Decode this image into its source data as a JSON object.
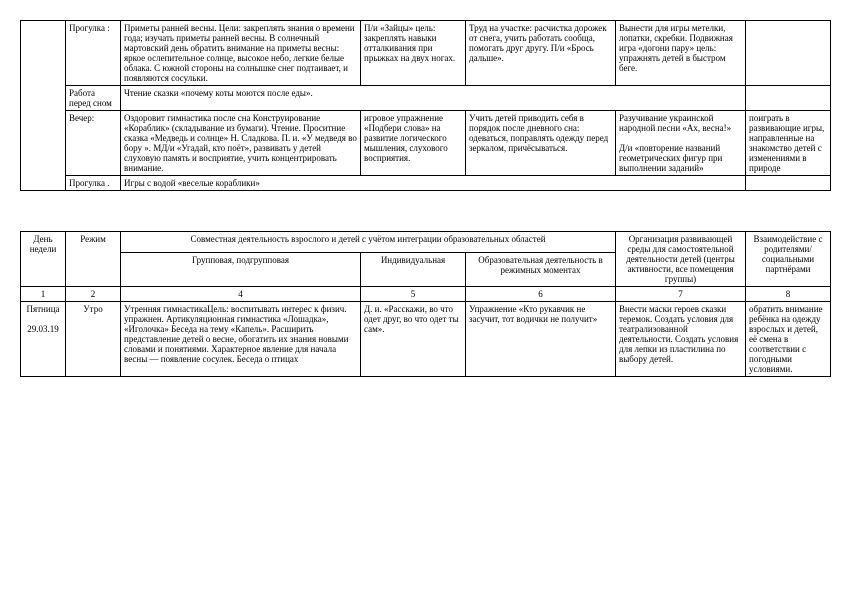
{
  "table1": {
    "rows": [
      {
        "regime": "Прогулка :",
        "c3": "Приметы ранней весны. Цели: закреплять знания о времени года; изучать приметы ранней весны. В солнечный мартовский день обратить внимание на приметы весны: яркое ослепительное солнце, высокое небо, легкие белые облака. С южной стороны на солнышке снег подтаивает, и появляются сосульки.",
        "c4": "П/и «Зайцы» цель: закреплять навыки отталкивания при прыжках на двух ногах.",
        "c5": "Труд на участке: расчистка дорожек от снега, учить работать сообща, помогать друг другу. П/и «Брось дальше».",
        "c6": "Вынести для игры метелки, лопатки, скребки. Подвижная игра «догони пару» цель: упражнять детей в быстром беге.",
        "c7": ""
      },
      {
        "regime": "Работа перед сном",
        "c3": "Чтение сказки «почему коты моются после еды».",
        "c7": ""
      },
      {
        "regime": "Вечер:",
        "c3": "Оздоровит гимнастика после сна Конструирование «Кораблик» (складывание из бумаги). Чтение. Проситние сказка «Медведь и солнце» Н. Сладкова. П. и. «У медведя во бору ». МД/и «Угадай, кто поёт», развивать у детей слуховую память и восприятие, учить концентрировать внимание.",
        "c4": "игровое упражнение «Подбери слова» на развитие логического мышления, слухового восприятия.",
        "c5": "Учить детей приводить себя в порядок после дневного сна: одеваться, поправлять одежду перед зеркалом, причёсываться.",
        "c6": "Разучивание украинской народной песни «Ах, весна!»\n\nД/и «повторение названий геометрических фигур при выполнении заданий»",
        "c7": "поиграть в развивающие игры, направленные на знакомство детей с изменениями в природе"
      },
      {
        "regime": "Прогулка .",
        "c3": "Игры с водой «веселые кораблики»",
        "c7": ""
      }
    ]
  },
  "table2": {
    "headers": {
      "day": "День недели",
      "regime": "Режим",
      "joint": "Совместная деятельность взрослого и детей с учётом интеграции образовательных областей",
      "group": "Групповая, подгрупповая",
      "ind": "Индивидуальная",
      "edu": "Образовательная деятельность в режимных моментах",
      "org": "Организация развивающей среды для самостоятельной деятельности детей (центры активности, все помещения группы)",
      "inter": "Взаимодействие с родителями/ социальными партнёрами"
    },
    "nums": {
      "c1": "1",
      "c2": "2",
      "c4": "4",
      "c5": "5",
      "c6": "6",
      "c7": "7",
      "c8": "8"
    },
    "row": {
      "day": "Пятница\n\n29.03.19",
      "regime": "Утро",
      "group": "Утренняя гимнастикаЦель: воспитывать интерес к физич. упражнен. Артикуляционная гимнастика «Лошадка», «Иголочка» Беседа на тему «Капель». Расширить представление детей о весне, обогатить их знания новыми словами и понятиями. Характерное явление для начала весны — появление сосулек. Беседа о птицах",
      "ind": "Д. и. «Расскажи, во что одет друг, во что одет ты сам».",
      "edu": "Упражнение «Кто рукавчик не засучит, тот водички не получит»",
      "org": "Внести маски героев сказки теремок. Создать условия для театрализованной деятельности. Создать условия для лепки из пластилина по выбору детей.",
      "inter": "обратить внимание ребёнка на одежду взрослых и детей, её смена в соответствии с погодными условиями."
    }
  }
}
